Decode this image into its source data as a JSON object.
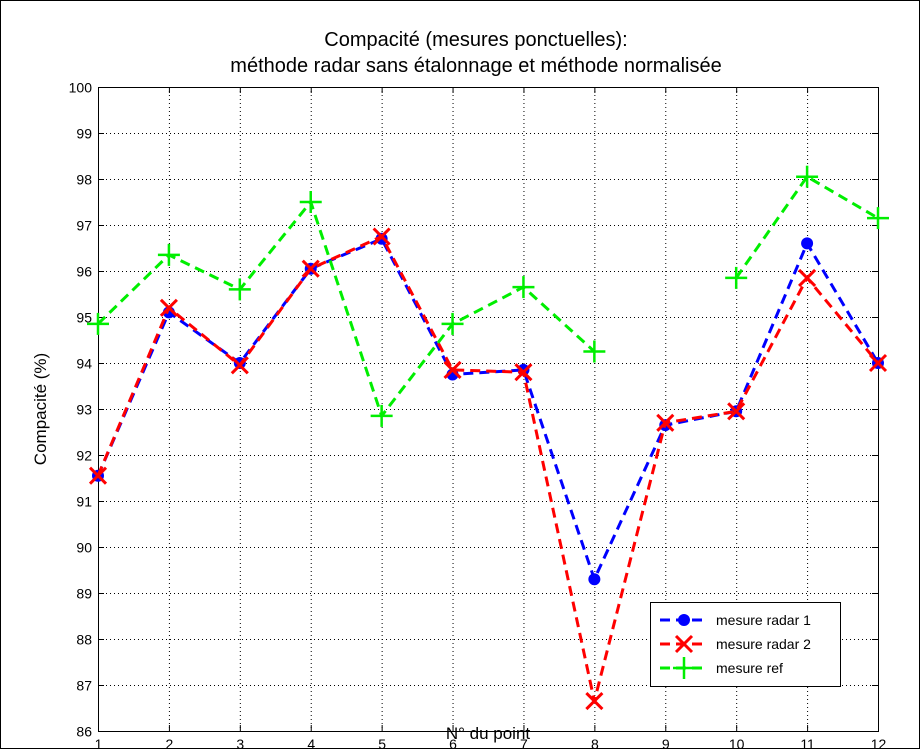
{
  "chart_data": {
    "type": "line",
    "title": [
      "Compacité (mesures ponctuelles):",
      "méthode radar sans étalonnage et méthode normalisée"
    ],
    "xlabel": "N° du point",
    "ylabel": "Compacité (%)",
    "xlim": [
      1,
      12
    ],
    "ylim": [
      86,
      100
    ],
    "xticks": [
      1,
      2,
      3,
      4,
      5,
      6,
      7,
      8,
      9,
      10,
      11,
      12
    ],
    "yticks": [
      86,
      87,
      88,
      89,
      90,
      91,
      92,
      93,
      94,
      95,
      96,
      97,
      98,
      99,
      100
    ],
    "grid": true,
    "legend_position": "bottom-right",
    "series": [
      {
        "name": "mesure radar 1",
        "color": "#0000ff",
        "marker": "dot",
        "x": [
          1,
          2,
          3,
          4,
          5,
          6,
          7,
          8,
          9,
          10,
          11,
          12
        ],
        "y": [
          91.55,
          95.1,
          94.0,
          96.05,
          96.7,
          93.75,
          93.85,
          89.3,
          92.65,
          92.95,
          96.6,
          94.0
        ]
      },
      {
        "name": "mesure radar 2",
        "color": "#ff0000",
        "marker": "x",
        "x": [
          1,
          2,
          3,
          4,
          5,
          6,
          7,
          8,
          9,
          10,
          11,
          12
        ],
        "y": [
          91.55,
          95.2,
          93.95,
          96.05,
          96.75,
          93.85,
          93.8,
          86.65,
          92.7,
          92.95,
          95.85,
          94.0
        ]
      },
      {
        "name": "mesure ref",
        "color": "#00ee00",
        "marker": "plus",
        "segments": [
          {
            "x": [
              1,
              2,
              3,
              4,
              5,
              6,
              7,
              8
            ],
            "y": [
              94.85,
              96.35,
              95.6,
              97.5,
              92.85,
              94.85,
              95.65,
              94.25
            ]
          },
          {
            "x": [
              10,
              11,
              12
            ],
            "y": [
              95.85,
              98.05,
              97.15
            ]
          }
        ]
      }
    ]
  }
}
